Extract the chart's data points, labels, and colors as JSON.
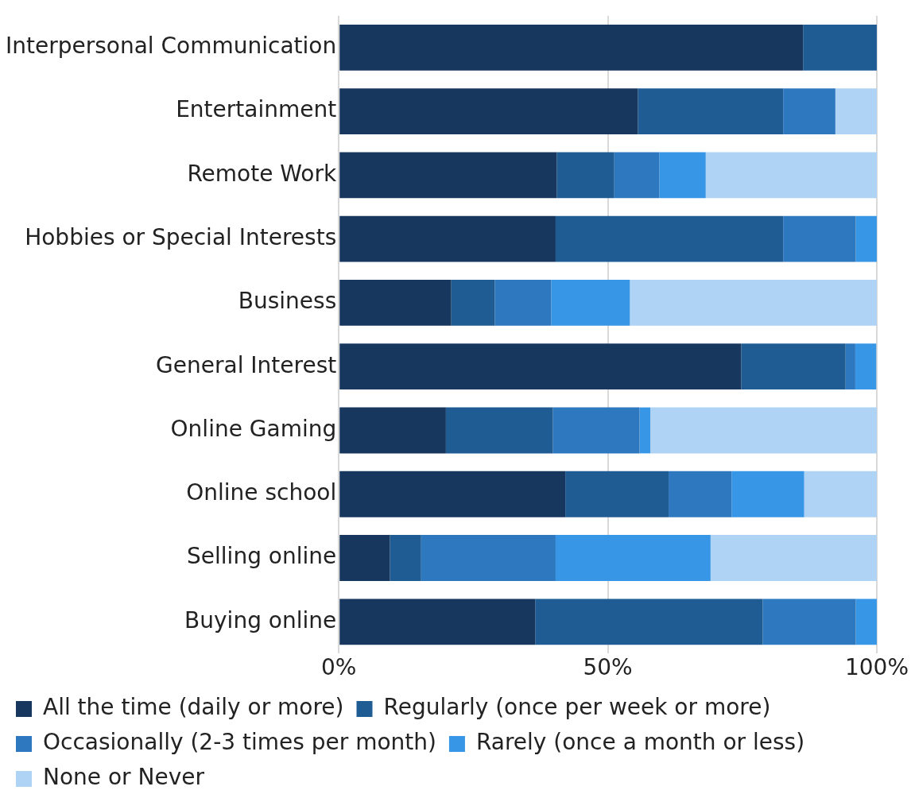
{
  "chart_data": {
    "type": "bar",
    "orientation": "horizontal",
    "stacked": true,
    "categories": [
      "Interpersonal Communication",
      "Entertainment",
      "Remote Work",
      "Hobbies or Special Interests",
      "Business",
      "General Interest",
      "Online Gaming",
      "Online school",
      "Selling online",
      "Buying online"
    ],
    "series": [
      {
        "name": "All the time (daily or more)",
        "color": "#17375e",
        "values": [
          86.3,
          55.6,
          40.5,
          40.3,
          20.9,
          74.8,
          19.9,
          42.1,
          9.5,
          36.5
        ]
      },
      {
        "name": "Regularly (once per week or more)",
        "color": "#1f5c94",
        "values": [
          13.7,
          27.0,
          10.7,
          42.3,
          8.1,
          19.4,
          19.9,
          19.2,
          5.8,
          42.3
        ]
      },
      {
        "name": "Occasionally (2-3 times per month)",
        "color": "#2e78bf",
        "values": [
          0,
          9.7,
          8.4,
          13.5,
          10.5,
          1.8,
          16.1,
          11.7,
          25.0,
          17.3
        ]
      },
      {
        "name": "Rarely (once a month or less)",
        "color": "#3796e6",
        "values": [
          0,
          0,
          8.6,
          3.9,
          14.6,
          3.9,
          2.0,
          13.5,
          28.8,
          3.9
        ]
      },
      {
        "name": "None or Never",
        "color": "#aed3f5",
        "values": [
          0,
          7.7,
          31.9,
          0,
          45.9,
          0,
          42.1,
          13.5,
          30.9,
          0
        ]
      }
    ],
    "xlim": [
      0,
      100
    ],
    "xticks": [
      {
        "value": 0,
        "label": "0%"
      },
      {
        "value": 50,
        "label": "50%"
      },
      {
        "value": 100,
        "label": "100%"
      }
    ],
    "grid": "x",
    "legend": "bottom"
  }
}
